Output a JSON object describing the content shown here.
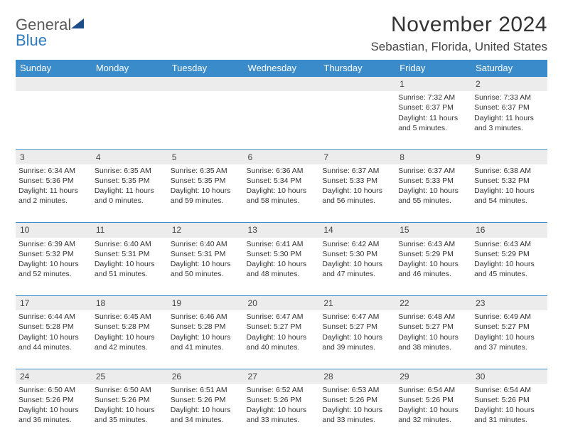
{
  "logo": {
    "word1": "General",
    "word2": "Blue"
  },
  "title": "November 2024",
  "location": "Sebastian, Florida, United States",
  "header_bg": "#3a8bc9",
  "daynum_bg": "#ececec",
  "text_color": "#333333",
  "day_headers": [
    "Sunday",
    "Monday",
    "Tuesday",
    "Wednesday",
    "Thursday",
    "Friday",
    "Saturday"
  ],
  "weeks": [
    {
      "nums": [
        "",
        "",
        "",
        "",
        "",
        "1",
        "2"
      ],
      "cells": [
        null,
        null,
        null,
        null,
        null,
        {
          "sunrise": "Sunrise: 7:32 AM",
          "sunset": "Sunset: 6:37 PM",
          "day1": "Daylight: 11 hours",
          "day2": "and 5 minutes."
        },
        {
          "sunrise": "Sunrise: 7:33 AM",
          "sunset": "Sunset: 6:37 PM",
          "day1": "Daylight: 11 hours",
          "day2": "and 3 minutes."
        }
      ]
    },
    {
      "nums": [
        "3",
        "4",
        "5",
        "6",
        "7",
        "8",
        "9"
      ],
      "cells": [
        {
          "sunrise": "Sunrise: 6:34 AM",
          "sunset": "Sunset: 5:36 PM",
          "day1": "Daylight: 11 hours",
          "day2": "and 2 minutes."
        },
        {
          "sunrise": "Sunrise: 6:35 AM",
          "sunset": "Sunset: 5:35 PM",
          "day1": "Daylight: 11 hours",
          "day2": "and 0 minutes."
        },
        {
          "sunrise": "Sunrise: 6:35 AM",
          "sunset": "Sunset: 5:35 PM",
          "day1": "Daylight: 10 hours",
          "day2": "and 59 minutes."
        },
        {
          "sunrise": "Sunrise: 6:36 AM",
          "sunset": "Sunset: 5:34 PM",
          "day1": "Daylight: 10 hours",
          "day2": "and 58 minutes."
        },
        {
          "sunrise": "Sunrise: 6:37 AM",
          "sunset": "Sunset: 5:33 PM",
          "day1": "Daylight: 10 hours",
          "day2": "and 56 minutes."
        },
        {
          "sunrise": "Sunrise: 6:37 AM",
          "sunset": "Sunset: 5:33 PM",
          "day1": "Daylight: 10 hours",
          "day2": "and 55 minutes."
        },
        {
          "sunrise": "Sunrise: 6:38 AM",
          "sunset": "Sunset: 5:32 PM",
          "day1": "Daylight: 10 hours",
          "day2": "and 54 minutes."
        }
      ]
    },
    {
      "nums": [
        "10",
        "11",
        "12",
        "13",
        "14",
        "15",
        "16"
      ],
      "cells": [
        {
          "sunrise": "Sunrise: 6:39 AM",
          "sunset": "Sunset: 5:32 PM",
          "day1": "Daylight: 10 hours",
          "day2": "and 52 minutes."
        },
        {
          "sunrise": "Sunrise: 6:40 AM",
          "sunset": "Sunset: 5:31 PM",
          "day1": "Daylight: 10 hours",
          "day2": "and 51 minutes."
        },
        {
          "sunrise": "Sunrise: 6:40 AM",
          "sunset": "Sunset: 5:31 PM",
          "day1": "Daylight: 10 hours",
          "day2": "and 50 minutes."
        },
        {
          "sunrise": "Sunrise: 6:41 AM",
          "sunset": "Sunset: 5:30 PM",
          "day1": "Daylight: 10 hours",
          "day2": "and 48 minutes."
        },
        {
          "sunrise": "Sunrise: 6:42 AM",
          "sunset": "Sunset: 5:30 PM",
          "day1": "Daylight: 10 hours",
          "day2": "and 47 minutes."
        },
        {
          "sunrise": "Sunrise: 6:43 AM",
          "sunset": "Sunset: 5:29 PM",
          "day1": "Daylight: 10 hours",
          "day2": "and 46 minutes."
        },
        {
          "sunrise": "Sunrise: 6:43 AM",
          "sunset": "Sunset: 5:29 PM",
          "day1": "Daylight: 10 hours",
          "day2": "and 45 minutes."
        }
      ]
    },
    {
      "nums": [
        "17",
        "18",
        "19",
        "20",
        "21",
        "22",
        "23"
      ],
      "cells": [
        {
          "sunrise": "Sunrise: 6:44 AM",
          "sunset": "Sunset: 5:28 PM",
          "day1": "Daylight: 10 hours",
          "day2": "and 44 minutes."
        },
        {
          "sunrise": "Sunrise: 6:45 AM",
          "sunset": "Sunset: 5:28 PM",
          "day1": "Daylight: 10 hours",
          "day2": "and 42 minutes."
        },
        {
          "sunrise": "Sunrise: 6:46 AM",
          "sunset": "Sunset: 5:28 PM",
          "day1": "Daylight: 10 hours",
          "day2": "and 41 minutes."
        },
        {
          "sunrise": "Sunrise: 6:47 AM",
          "sunset": "Sunset: 5:27 PM",
          "day1": "Daylight: 10 hours",
          "day2": "and 40 minutes."
        },
        {
          "sunrise": "Sunrise: 6:47 AM",
          "sunset": "Sunset: 5:27 PM",
          "day1": "Daylight: 10 hours",
          "day2": "and 39 minutes."
        },
        {
          "sunrise": "Sunrise: 6:48 AM",
          "sunset": "Sunset: 5:27 PM",
          "day1": "Daylight: 10 hours",
          "day2": "and 38 minutes."
        },
        {
          "sunrise": "Sunrise: 6:49 AM",
          "sunset": "Sunset: 5:27 PM",
          "day1": "Daylight: 10 hours",
          "day2": "and 37 minutes."
        }
      ]
    },
    {
      "nums": [
        "24",
        "25",
        "26",
        "27",
        "28",
        "29",
        "30"
      ],
      "cells": [
        {
          "sunrise": "Sunrise: 6:50 AM",
          "sunset": "Sunset: 5:26 PM",
          "day1": "Daylight: 10 hours",
          "day2": "and 36 minutes."
        },
        {
          "sunrise": "Sunrise: 6:50 AM",
          "sunset": "Sunset: 5:26 PM",
          "day1": "Daylight: 10 hours",
          "day2": "and 35 minutes."
        },
        {
          "sunrise": "Sunrise: 6:51 AM",
          "sunset": "Sunset: 5:26 PM",
          "day1": "Daylight: 10 hours",
          "day2": "and 34 minutes."
        },
        {
          "sunrise": "Sunrise: 6:52 AM",
          "sunset": "Sunset: 5:26 PM",
          "day1": "Daylight: 10 hours",
          "day2": "and 33 minutes."
        },
        {
          "sunrise": "Sunrise: 6:53 AM",
          "sunset": "Sunset: 5:26 PM",
          "day1": "Daylight: 10 hours",
          "day2": "and 33 minutes."
        },
        {
          "sunrise": "Sunrise: 6:54 AM",
          "sunset": "Sunset: 5:26 PM",
          "day1": "Daylight: 10 hours",
          "day2": "and 32 minutes."
        },
        {
          "sunrise": "Sunrise: 6:54 AM",
          "sunset": "Sunset: 5:26 PM",
          "day1": "Daylight: 10 hours",
          "day2": "and 31 minutes."
        }
      ]
    }
  ]
}
